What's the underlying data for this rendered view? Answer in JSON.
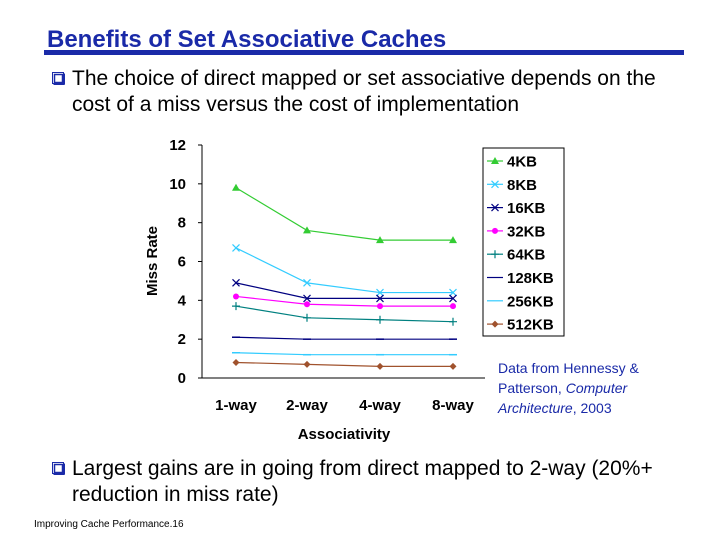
{
  "slide": {
    "title": "Benefits of Set Associative Caches",
    "bullets": [
      "The choice of direct mapped or set associative depends on the cost of a miss versus the cost of implementation",
      "Largest gains are in going from direct mapped to 2-way (20%+ reduction in miss rate)"
    ],
    "note": {
      "prefix": "Data from Hennessy & Patterson, ",
      "book": "Computer Architecture",
      "suffix": ", 2003"
    },
    "footer": "Improving Cache Performance.16"
  },
  "colors": {
    "title": "#1a2aa8",
    "accent": "#1a2aa8"
  },
  "chart_data": {
    "type": "line",
    "categories": [
      "1-way",
      "2-way",
      "4-way",
      "8-way"
    ],
    "xlabel": "Associativity",
    "ylabel": "Miss Rate",
    "ylim": [
      0,
      12
    ],
    "yticks": [
      0,
      2,
      4,
      6,
      8,
      10,
      12
    ],
    "grid": false,
    "legend": "right",
    "series": [
      {
        "name": "4KB",
        "values": [
          9.8,
          7.6,
          7.1,
          7.1
        ],
        "color": "#33cc33",
        "marker": "triangle"
      },
      {
        "name": "8KB",
        "values": [
          6.7,
          4.9,
          4.4,
          4.4
        ],
        "color": "#33ccff",
        "marker": "x"
      },
      {
        "name": "16KB",
        "values": [
          4.9,
          4.1,
          4.1,
          4.1
        ],
        "color": "#000080",
        "marker": "x"
      },
      {
        "name": "32KB",
        "values": [
          4.2,
          3.8,
          3.7,
          3.7
        ],
        "color": "#ff00ff",
        "marker": "circle"
      },
      {
        "name": "64KB",
        "values": [
          3.7,
          3.1,
          3.0,
          2.9
        ],
        "color": "#008080",
        "marker": "plus"
      },
      {
        "name": "128KB",
        "values": [
          2.1,
          2.0,
          2.0,
          2.0
        ],
        "color": "#000080",
        "marker": "none"
      },
      {
        "name": "256KB",
        "values": [
          1.3,
          1.2,
          1.2,
          1.2
        ],
        "color": "#33ccff",
        "marker": "none"
      },
      {
        "name": "512KB",
        "values": [
          0.8,
          0.7,
          0.6,
          0.6
        ],
        "color": "#a0522d",
        "marker": "diamond"
      }
    ]
  }
}
